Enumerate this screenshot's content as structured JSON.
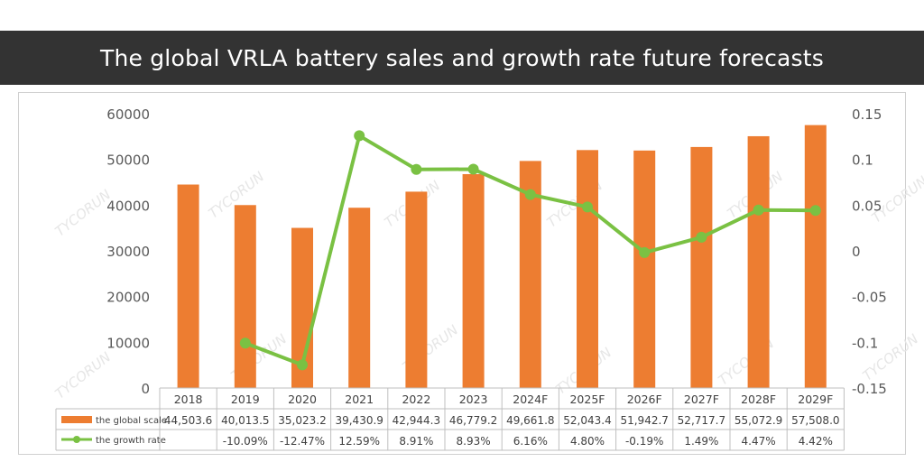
{
  "title": "The global VRLA battery sales and growth rate future forecasts",
  "watermark": "TYCORUN",
  "chart_data": {
    "type": "bar",
    "categories": [
      "2018",
      "2019",
      "2020",
      "2021",
      "2022",
      "2023",
      "2024F",
      "2025F",
      "2026F",
      "2027F",
      "2028F",
      "2029F"
    ],
    "series": [
      {
        "name": "the global scale",
        "type": "bar",
        "axis": "left",
        "values": [
          44503.6,
          40013.5,
          35023.2,
          39430.9,
          42944.3,
          46779.2,
          49661.8,
          52043.4,
          51942.7,
          52717.7,
          55072.9,
          57508.0
        ],
        "labels": [
          "44,503.6",
          "40,013.5",
          "35,023.2",
          "39,430.9",
          "42,944.3",
          "46,779.2",
          "49,661.8",
          "52,043.4",
          "51,942.7",
          "52,717.7",
          "55,072.9",
          "57,508.0"
        ]
      },
      {
        "name": "the growth rate",
        "type": "line",
        "axis": "right",
        "values": [
          null,
          -0.1009,
          -0.1247,
          0.1259,
          0.0891,
          0.0893,
          0.0616,
          0.048,
          -0.0019,
          0.0149,
          0.0447,
          0.0442
        ],
        "labels": [
          "",
          "-10.09%",
          "-12.47%",
          "12.59%",
          "8.91%",
          "8.93%",
          "6.16%",
          "4.80%",
          "-0.19%",
          "1.49%",
          "4.47%",
          "4.42%"
        ]
      }
    ],
    "y_left": {
      "min": 0,
      "max": 60000,
      "ticks": [
        "60000",
        "50000",
        "40000",
        "30000",
        "20000",
        "10000",
        "0"
      ],
      "tick_values": [
        60000,
        50000,
        40000,
        30000,
        20000,
        10000,
        0
      ]
    },
    "y_right": {
      "min": -0.15,
      "max": 0.15,
      "ticks": [
        "0.15",
        "0.1",
        "0.05",
        "0",
        "-0.05",
        "-0.1",
        "-0.15"
      ],
      "tick_values": [
        0.15,
        0.1,
        0.05,
        0,
        -0.05,
        -0.1,
        -0.15
      ]
    },
    "grid": false,
    "legend": "data-table",
    "colors": {
      "bar": "#ED7D31",
      "line": "#7AC143"
    }
  }
}
